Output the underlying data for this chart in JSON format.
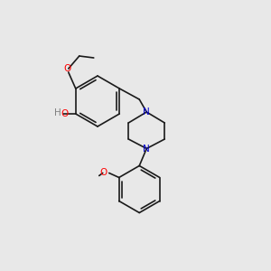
{
  "background_color": "#e8e8e8",
  "bond_color": "#1a1a1a",
  "atom_colors": {
    "O": "#ff0000",
    "N": "#0000cc",
    "H": "#808080",
    "C": "#1a1a1a"
  },
  "font_size_atom": 7.5,
  "font_size_label": 7.0,
  "line_width": 1.2
}
